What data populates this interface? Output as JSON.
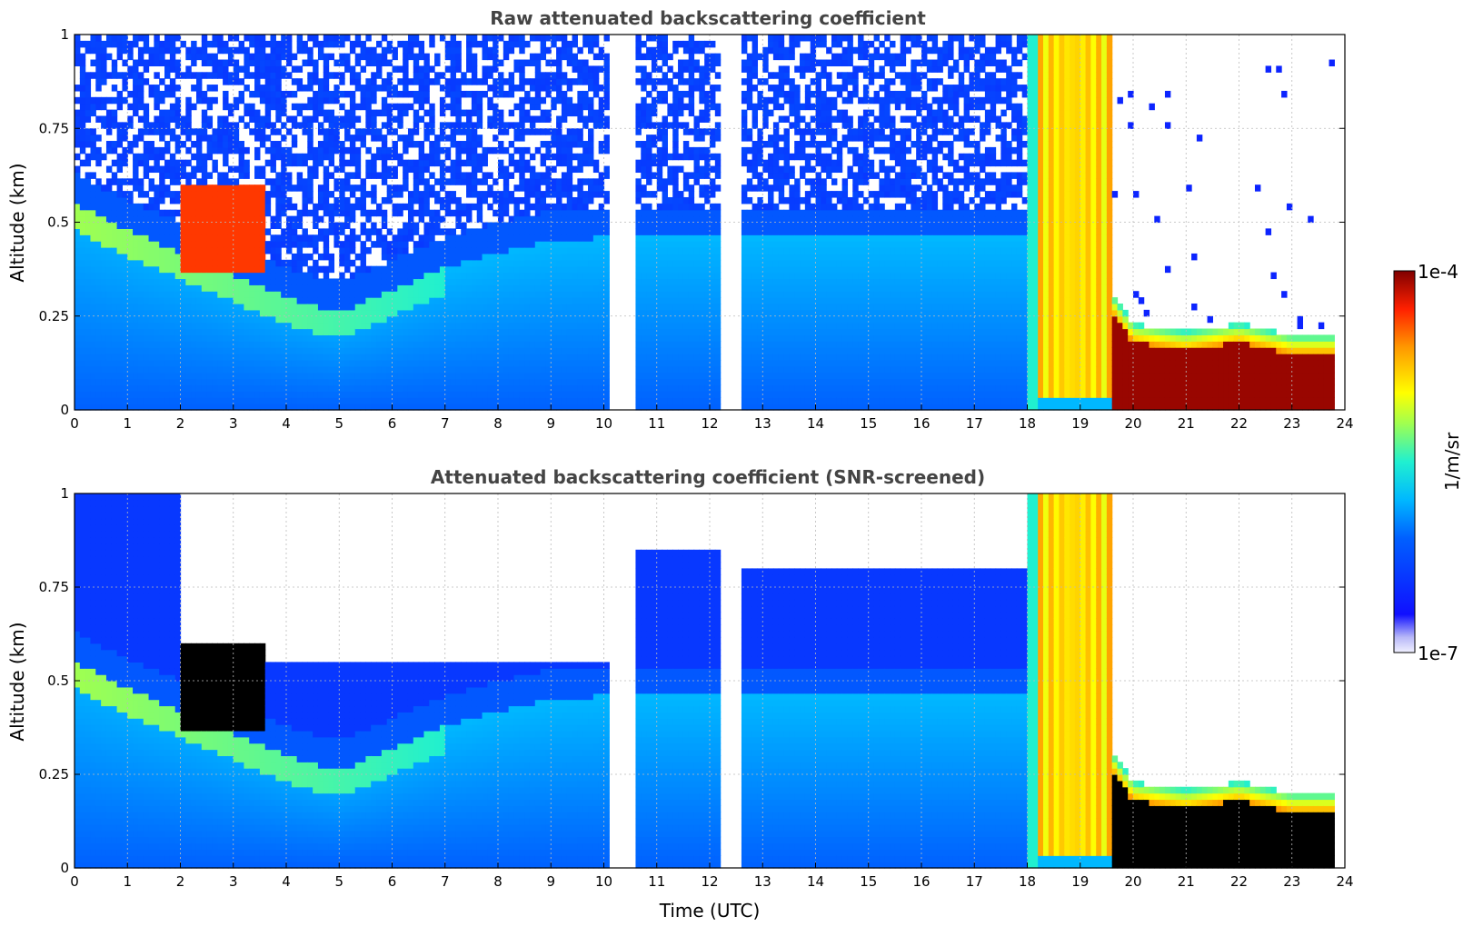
{
  "chart_data": [
    {
      "type": "heatmap",
      "title": "Raw attenuated backscattering coefficient",
      "xlabel": "",
      "ylabel": "Altitude (km)",
      "xlim": [
        0,
        24
      ],
      "ylim": [
        0,
        1
      ],
      "xticks": [
        0,
        1,
        2,
        3,
        4,
        5,
        6,
        7,
        8,
        9,
        10,
        11,
        12,
        13,
        14,
        15,
        16,
        17,
        18,
        19,
        20,
        21,
        22,
        23,
        24
      ],
      "yticks": [
        0,
        0.25,
        0.5,
        0.75,
        1
      ],
      "ytick_labels": [
        "0",
        "0.25",
        "0.5",
        "0.75",
        "1"
      ],
      "grid": true,
      "data_gaps_hours": [
        [
          10.15,
          10.55
        ],
        [
          12.22,
          12.6
        ]
      ],
      "features": {
        "boundary_layer_top_km": {
          "hours": [
            0,
            1,
            2,
            3,
            4,
            5,
            6,
            7,
            8,
            9,
            10
          ],
          "values": [
            0.55,
            0.48,
            0.42,
            0.36,
            0.3,
            0.26,
            0.32,
            0.38,
            0.42,
            0.45,
            0.46
          ]
        },
        "cloud_block_hours": [
          18.0,
          19.6
        ],
        "low_cloud_top_km": {
          "hours": [
            19.6,
            20,
            21,
            22,
            23,
            23.8
          ],
          "values": [
            0.28,
            0.2,
            0.18,
            0.2,
            0.17,
            0.17
          ]
        }
      },
      "noise_floor": "raw"
    },
    {
      "type": "heatmap",
      "title": "Attenuated backscattering coefficient (SNR-screened)",
      "xlabel": "Time (UTC)",
      "ylabel": "Altitude (km)",
      "xlim": [
        0,
        24
      ],
      "ylim": [
        0,
        1
      ],
      "xticks": [
        0,
        1,
        2,
        3,
        4,
        5,
        6,
        7,
        8,
        9,
        10,
        11,
        12,
        13,
        14,
        15,
        16,
        17,
        18,
        19,
        20,
        21,
        22,
        23,
        24
      ],
      "yticks": [
        0,
        0.25,
        0.5,
        0.75,
        1
      ],
      "ytick_labels": [
        "0",
        "0.25",
        "0.5",
        "0.75",
        "1"
      ],
      "grid": true,
      "data_gaps_hours": [
        [
          10.15,
          10.55
        ],
        [
          12.22,
          12.6
        ]
      ],
      "noise_floor": "screened"
    }
  ],
  "colorbar": {
    "label": "1/m/sr",
    "min_label": "1e-7",
    "max_label": "1e-4",
    "scale": "log",
    "colormap": "jet",
    "min_value": 1e-07,
    "max_value": 0.0001
  }
}
